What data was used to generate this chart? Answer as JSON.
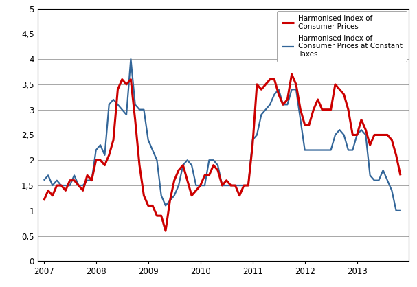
{
  "hicp": {
    "label": "Harmonised Index of\nConsumer Prices",
    "color": "#cc0000",
    "linewidth": 2.2,
    "x": [
      2007.0,
      2007.083,
      2007.167,
      2007.25,
      2007.333,
      2007.417,
      2007.5,
      2007.583,
      2007.667,
      2007.75,
      2007.833,
      2007.917,
      2008.0,
      2008.083,
      2008.167,
      2008.25,
      2008.333,
      2008.417,
      2008.5,
      2008.583,
      2008.667,
      2008.75,
      2008.833,
      2008.917,
      2009.0,
      2009.083,
      2009.167,
      2009.25,
      2009.333,
      2009.417,
      2009.5,
      2009.583,
      2009.667,
      2009.75,
      2009.833,
      2009.917,
      2010.0,
      2010.083,
      2010.167,
      2010.25,
      2010.333,
      2010.417,
      2010.5,
      2010.583,
      2010.667,
      2010.75,
      2010.833,
      2010.917,
      2011.0,
      2011.083,
      2011.167,
      2011.25,
      2011.333,
      2011.417,
      2011.5,
      2011.583,
      2011.667,
      2011.75,
      2011.833,
      2011.917,
      2012.0,
      2012.083,
      2012.167,
      2012.25,
      2012.333,
      2012.417,
      2012.5,
      2012.583,
      2012.667,
      2012.75,
      2012.833,
      2012.917,
      2013.0,
      2013.083,
      2013.167,
      2013.25,
      2013.333,
      2013.417,
      2013.5,
      2013.583,
      2013.667,
      2013.75,
      2013.833
    ],
    "y": [
      1.2,
      1.4,
      1.3,
      1.5,
      1.5,
      1.4,
      1.6,
      1.6,
      1.5,
      1.4,
      1.7,
      1.6,
      2.0,
      2.0,
      1.9,
      2.1,
      2.4,
      3.4,
      3.6,
      3.5,
      3.6,
      2.8,
      1.9,
      1.3,
      1.1,
      1.1,
      0.9,
      0.9,
      0.6,
      1.2,
      1.6,
      1.8,
      1.9,
      1.6,
      1.3,
      1.4,
      1.5,
      1.7,
      1.7,
      1.9,
      1.8,
      1.5,
      1.6,
      1.5,
      1.5,
      1.3,
      1.5,
      1.5,
      2.3,
      3.5,
      3.4,
      3.5,
      3.6,
      3.6,
      3.3,
      3.1,
      3.2,
      3.7,
      3.5,
      3.0,
      2.7,
      2.7,
      3.0,
      3.2,
      3.0,
      3.0,
      3.0,
      3.5,
      3.4,
      3.3,
      3.0,
      2.5,
      2.5,
      2.8,
      2.6,
      2.3,
      2.5,
      2.5,
      2.5,
      2.5,
      2.4,
      2.1,
      1.7
    ]
  },
  "hicpct": {
    "label": "Harmonised Index of\nConsumer Prices at Constant\nTaxes",
    "color": "#336699",
    "linewidth": 1.6,
    "x": [
      2007.0,
      2007.083,
      2007.167,
      2007.25,
      2007.333,
      2007.417,
      2007.5,
      2007.583,
      2007.667,
      2007.75,
      2007.833,
      2007.917,
      2008.0,
      2008.083,
      2008.167,
      2008.25,
      2008.333,
      2008.417,
      2008.5,
      2008.583,
      2008.667,
      2008.75,
      2008.833,
      2008.917,
      2009.0,
      2009.083,
      2009.167,
      2009.25,
      2009.333,
      2009.417,
      2009.5,
      2009.583,
      2009.667,
      2009.75,
      2009.833,
      2009.917,
      2010.0,
      2010.083,
      2010.167,
      2010.25,
      2010.333,
      2010.417,
      2010.5,
      2010.583,
      2010.667,
      2010.75,
      2010.833,
      2010.917,
      2011.0,
      2011.083,
      2011.167,
      2011.25,
      2011.333,
      2011.417,
      2011.5,
      2011.583,
      2011.667,
      2011.75,
      2011.833,
      2011.917,
      2012.0,
      2012.083,
      2012.167,
      2012.25,
      2012.333,
      2012.417,
      2012.5,
      2012.583,
      2012.667,
      2012.75,
      2012.833,
      2012.917,
      2013.0,
      2013.083,
      2013.167,
      2013.25,
      2013.333,
      2013.417,
      2013.5,
      2013.583,
      2013.667,
      2013.75,
      2013.833
    ],
    "y": [
      1.6,
      1.7,
      1.5,
      1.6,
      1.5,
      1.5,
      1.5,
      1.7,
      1.5,
      1.5,
      1.6,
      1.6,
      2.2,
      2.3,
      2.1,
      3.1,
      3.2,
      3.1,
      3.0,
      2.9,
      4.0,
      3.1,
      3.0,
      3.0,
      2.4,
      2.2,
      2.0,
      1.3,
      1.1,
      1.2,
      1.3,
      1.5,
      1.9,
      2.0,
      1.9,
      1.5,
      1.5,
      1.5,
      2.0,
      2.0,
      1.9,
      1.5,
      1.5,
      1.5,
      1.5,
      1.5,
      1.5,
      1.5,
      2.4,
      2.5,
      2.9,
      3.0,
      3.1,
      3.3,
      3.4,
      3.1,
      3.1,
      3.4,
      3.4,
      2.8,
      2.2,
      2.2,
      2.2,
      2.2,
      2.2,
      2.2,
      2.2,
      2.5,
      2.6,
      2.5,
      2.2,
      2.2,
      2.5,
      2.6,
      2.5,
      1.7,
      1.6,
      1.6,
      1.8,
      1.6,
      1.4,
      1.0,
      1.0
    ]
  },
  "ylim": [
    0,
    5
  ],
  "yticks": [
    0,
    0.5,
    1,
    1.5,
    2,
    2.5,
    3,
    3.5,
    4,
    4.5,
    5
  ],
  "ytick_labels": [
    "0",
    "0,5",
    "1",
    "1,5",
    "2",
    "2,5",
    "3",
    "3,5",
    "4",
    "4,5",
    "5"
  ],
  "xlim": [
    2006.88,
    2013.99
  ],
  "xticks": [
    2007,
    2008,
    2009,
    2010,
    2011,
    2012,
    2013
  ],
  "xtick_labels": [
    "2007",
    "2008",
    "2009",
    "2010",
    "2011",
    "2012",
    "2013"
  ],
  "background_color": "#ffffff",
  "grid_color": "#999999",
  "fig_width": 6.07,
  "fig_height": 4.18,
  "dpi": 100
}
